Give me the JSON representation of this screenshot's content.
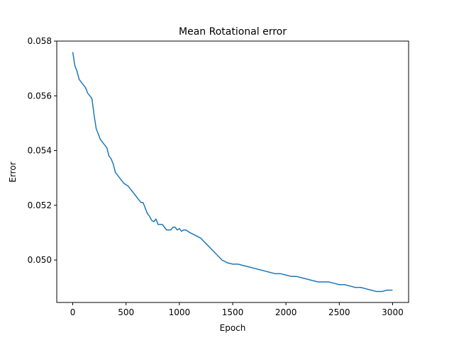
{
  "chart_data": {
    "type": "line",
    "title": "Mean Rotational error",
    "xlabel": "Epoch",
    "ylabel": "Error",
    "xlim": [
      -150,
      3150
    ],
    "ylim": [
      0.04845,
      0.058
    ],
    "xticks": [
      0,
      500,
      1000,
      1500,
      2000,
      2500,
      3000
    ],
    "xtick_labels": [
      "0",
      "500",
      "1000",
      "1500",
      "2000",
      "2500",
      "3000"
    ],
    "yticks": [
      0.05,
      0.052,
      0.054,
      0.056,
      0.058
    ],
    "ytick_labels": [
      "0.050",
      "0.052",
      "0.054",
      "0.056",
      "0.058"
    ],
    "grid": false,
    "color": "#1f77b4",
    "series": [
      {
        "x": [
          0,
          20,
          40,
          60,
          80,
          100,
          120,
          140,
          160,
          180,
          200,
          220,
          240,
          260,
          280,
          300,
          320,
          340,
          360,
          380,
          400,
          420,
          440,
          460,
          480,
          500,
          520,
          540,
          560,
          580,
          600,
          620,
          640,
          660,
          680,
          700,
          720,
          740,
          760,
          780,
          800,
          820,
          840,
          860,
          880,
          900,
          920,
          940,
          960,
          980,
          1000,
          1020,
          1040,
          1060,
          1080,
          1100,
          1150,
          1200,
          1250,
          1300,
          1350,
          1400,
          1450,
          1500,
          1550,
          1600,
          1650,
          1700,
          1750,
          1800,
          1850,
          1900,
          1950,
          2000,
          2050,
          2100,
          2150,
          2200,
          2250,
          2300,
          2350,
          2400,
          2450,
          2500,
          2550,
          2600,
          2650,
          2700,
          2750,
          2800,
          2850,
          2900,
          2950,
          3000
        ],
        "y": [
          0.0576,
          0.0571,
          0.0569,
          0.0566,
          0.0565,
          0.0564,
          0.0563,
          0.0561,
          0.056,
          0.0559,
          0.0553,
          0.0548,
          0.0546,
          0.0544,
          0.0543,
          0.0542,
          0.0541,
          0.0538,
          0.0537,
          0.0535,
          0.0532,
          0.0531,
          0.053,
          0.0529,
          0.0528,
          0.05275,
          0.0527,
          0.0526,
          0.0525,
          0.0524,
          0.0523,
          0.0522,
          0.0521,
          0.0521,
          0.0519,
          0.0517,
          0.0516,
          0.05145,
          0.0514,
          0.0515,
          0.0513,
          0.0513,
          0.0513,
          0.0512,
          0.0511,
          0.0511,
          0.0511,
          0.0512,
          0.0512,
          0.0511,
          0.05115,
          0.05105,
          0.0511,
          0.0511,
          0.05105,
          0.051,
          0.0509,
          0.0508,
          0.0506,
          0.0504,
          0.0502,
          0.05,
          0.0499,
          0.04985,
          0.04985,
          0.0498,
          0.04975,
          0.0497,
          0.04965,
          0.0496,
          0.04955,
          0.0495,
          0.0495,
          0.04945,
          0.0494,
          0.0494,
          0.04935,
          0.0493,
          0.04925,
          0.0492,
          0.0492,
          0.0492,
          0.04915,
          0.0491,
          0.0491,
          0.04905,
          0.049,
          0.049,
          0.04895,
          0.0489,
          0.04885,
          0.04885,
          0.0489,
          0.0489
        ]
      }
    ]
  }
}
